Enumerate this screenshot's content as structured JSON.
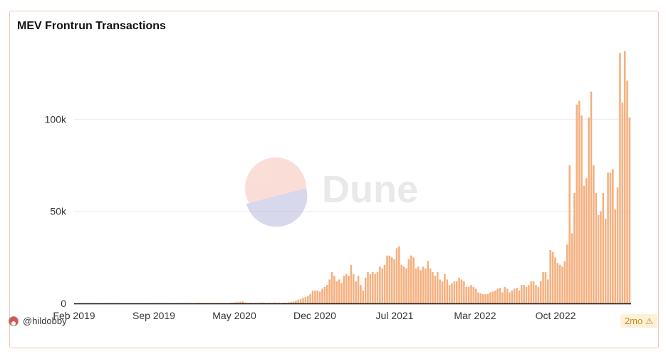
{
  "chart_data": {
    "type": "bar",
    "title": "MEV Frontrun Transactions",
    "x_tick_labels": [
      "Feb 2019",
      "Sep 2019",
      "May 2020",
      "Dec 2020",
      "Jul 2021",
      "Mar 2022",
      "Oct 2022"
    ],
    "y_tick_labels": [
      "0",
      "50k",
      "100k"
    ],
    "ylim": [
      0,
      140000
    ],
    "grid": true,
    "color": "#f5b07f",
    "values": [
      200,
      200,
      200,
      200,
      200,
      200,
      200,
      200,
      200,
      200,
      200,
      200,
      200,
      200,
      200,
      200,
      200,
      200,
      200,
      200,
      200,
      200,
      200,
      200,
      200,
      200,
      200,
      200,
      200,
      200,
      200,
      200,
      200,
      200,
      200,
      200,
      200,
      200,
      200,
      200,
      200,
      200,
      200,
      200,
      200,
      200,
      200,
      200,
      200,
      200,
      200,
      300,
      300,
      300,
      300,
      300,
      300,
      300,
      300,
      300,
      300,
      300,
      300,
      300,
      300,
      400,
      500,
      600,
      700,
      900,
      1000,
      500,
      300,
      400,
      300,
      400,
      300,
      400,
      500,
      400,
      300,
      400,
      300,
      500,
      300,
      400,
      300,
      400,
      400,
      600,
      700,
      1000,
      1500,
      2000,
      2500,
      3000,
      3500,
      4000,
      5000,
      7000,
      7000,
      7000,
      6500,
      8000,
      9000,
      10000,
      13000,
      17000,
      15000,
      12000,
      13000,
      11000,
      15000,
      16000,
      15000,
      21000,
      16000,
      12000,
      15000,
      10000,
      7000,
      14000,
      17000,
      16000,
      17000,
      16000,
      17000,
      20000,
      19000,
      21000,
      26000,
      26000,
      25000,
      24000,
      30000,
      31000,
      21000,
      20000,
      19000,
      24000,
      26000,
      25000,
      19000,
      20000,
      18000,
      20000,
      19000,
      23000,
      19000,
      17000,
      15000,
      17000,
      13000,
      12000,
      16000,
      13000,
      10000,
      11000,
      12000,
      12000,
      14000,
      13000,
      12000,
      9000,
      9000,
      10000,
      9000,
      8000,
      6000,
      5500,
      5000,
      5000,
      5000,
      6000,
      6500,
      7000,
      8000,
      8500,
      6000,
      9000,
      8000,
      6000,
      7000,
      8000,
      8500,
      7000,
      10000,
      10000,
      9000,
      10000,
      12000,
      12000,
      10000,
      9000,
      12000,
      17000,
      17000,
      13000,
      29000,
      28000,
      25000,
      22000,
      21000,
      20000,
      23000,
      32000,
      75000,
      38000,
      60000,
      108000,
      110000,
      102000,
      64000,
      68000,
      101000,
      115000,
      75000,
      60000,
      48000,
      50000,
      60000,
      46000,
      71000,
      71000,
      73000,
      51000,
      63000,
      136000,
      109000,
      137000,
      121000,
      101000
    ]
  },
  "footer": {
    "user": "@hildobby",
    "badge": "2mo"
  },
  "watermark": "Dune"
}
